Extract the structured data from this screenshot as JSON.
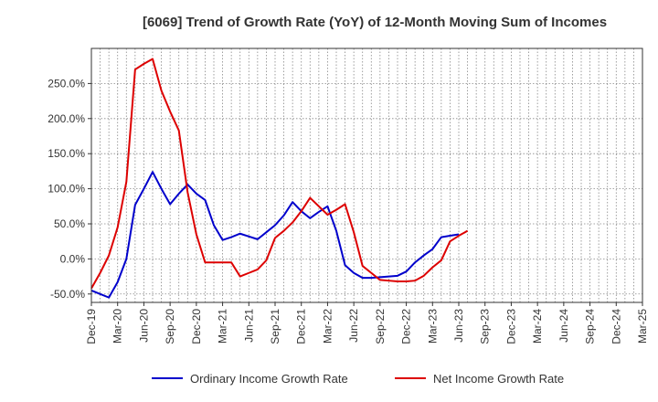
{
  "chart_data": {
    "type": "line",
    "title": "[6069]  Trend of Growth Rate (YoY) of 12-Month Moving Sum of Incomes",
    "xlabel": "",
    "ylabel": "",
    "ylim": [
      -62,
      300
    ],
    "y_ticks": [
      -50,
      0,
      50,
      100,
      150,
      200,
      250
    ],
    "y_tick_labels": [
      "-50.0%",
      "0.0%",
      "50.0%",
      "100.0%",
      "150.0%",
      "200.0%",
      "250.0%"
    ],
    "x_tick_labels": [
      "Dec-19",
      "Mar-20",
      "Jun-20",
      "Sep-20",
      "Dec-20",
      "Mar-21",
      "Jun-21",
      "Sep-21",
      "Dec-21",
      "Mar-22",
      "Jun-22",
      "Sep-22",
      "Dec-22",
      "Mar-23",
      "Jun-23",
      "Sep-23",
      "Dec-23",
      "Mar-24",
      "Jun-24",
      "Sep-24",
      "Dec-24",
      "Mar-25"
    ],
    "x": [
      "Dec-19",
      "Jan-20",
      "Feb-20",
      "Mar-20",
      "Apr-20",
      "May-20",
      "Jun-20",
      "Jul-20",
      "Aug-20",
      "Sep-20",
      "Oct-20",
      "Nov-20",
      "Dec-20",
      "Jan-21",
      "Feb-21",
      "Mar-21",
      "Apr-21",
      "May-21",
      "Jun-21",
      "Jul-21",
      "Aug-21",
      "Sep-21",
      "Oct-21",
      "Nov-21",
      "Dec-21",
      "Jan-22",
      "Feb-22",
      "Mar-22",
      "Apr-22",
      "May-22",
      "Jun-22",
      "Jul-22",
      "Aug-22",
      "Sep-22",
      "Oct-22",
      "Nov-22",
      "Dec-22",
      "Jan-23",
      "Feb-23",
      "Mar-23",
      "Apr-23",
      "May-23",
      "Jun-23",
      "Jul-23",
      "Aug-23",
      "Sep-23",
      "Oct-23",
      "Nov-23",
      "Dec-23",
      "Jan-24",
      "Feb-24",
      "Mar-24",
      "Apr-24",
      "May-24",
      "Jun-24",
      "Jul-24",
      "Aug-24",
      "Sep-24",
      "Oct-24",
      "Nov-24",
      "Dec-24",
      "Jan-25",
      "Feb-25",
      "Mar-25"
    ],
    "grid": true,
    "legend_position": "bottom",
    "series": [
      {
        "name": "Ordinary Income Growth Rate",
        "color": "#0000cc",
        "values": [
          -45,
          -50,
          -55,
          -33,
          0,
          77,
          100,
          124,
          100,
          78,
          93,
          106,
          93,
          84,
          48,
          27,
          31,
          36,
          32,
          28,
          38,
          48,
          62,
          81,
          68,
          58,
          67,
          75,
          40,
          -9,
          -20,
          -27,
          -27,
          -26,
          -25,
          -24,
          -18,
          -5,
          5,
          14,
          31,
          33,
          35,
          null,
          null,
          null,
          null,
          null,
          null,
          null,
          null,
          null,
          null,
          null,
          null,
          null,
          null,
          null,
          null,
          null,
          null,
          null,
          null,
          null
        ]
      },
      {
        "name": "Net Income Growth Rate",
        "color": "#dd0000",
        "values": [
          -42,
          -20,
          5,
          45,
          110,
          270,
          278,
          285,
          240,
          210,
          183,
          95,
          35,
          -5,
          -5,
          -5,
          -5,
          -25,
          -20,
          -15,
          -2,
          30,
          40,
          52,
          68,
          87,
          75,
          63,
          70,
          78,
          38,
          -10,
          -20,
          -30,
          -31,
          -32,
          -32,
          -31,
          -24,
          -12,
          -2,
          25,
          33,
          40,
          null,
          null,
          null,
          null,
          null,
          null,
          null,
          null,
          null,
          null,
          null,
          null,
          null,
          null,
          null,
          null,
          null,
          null,
          null,
          null
        ]
      }
    ]
  }
}
